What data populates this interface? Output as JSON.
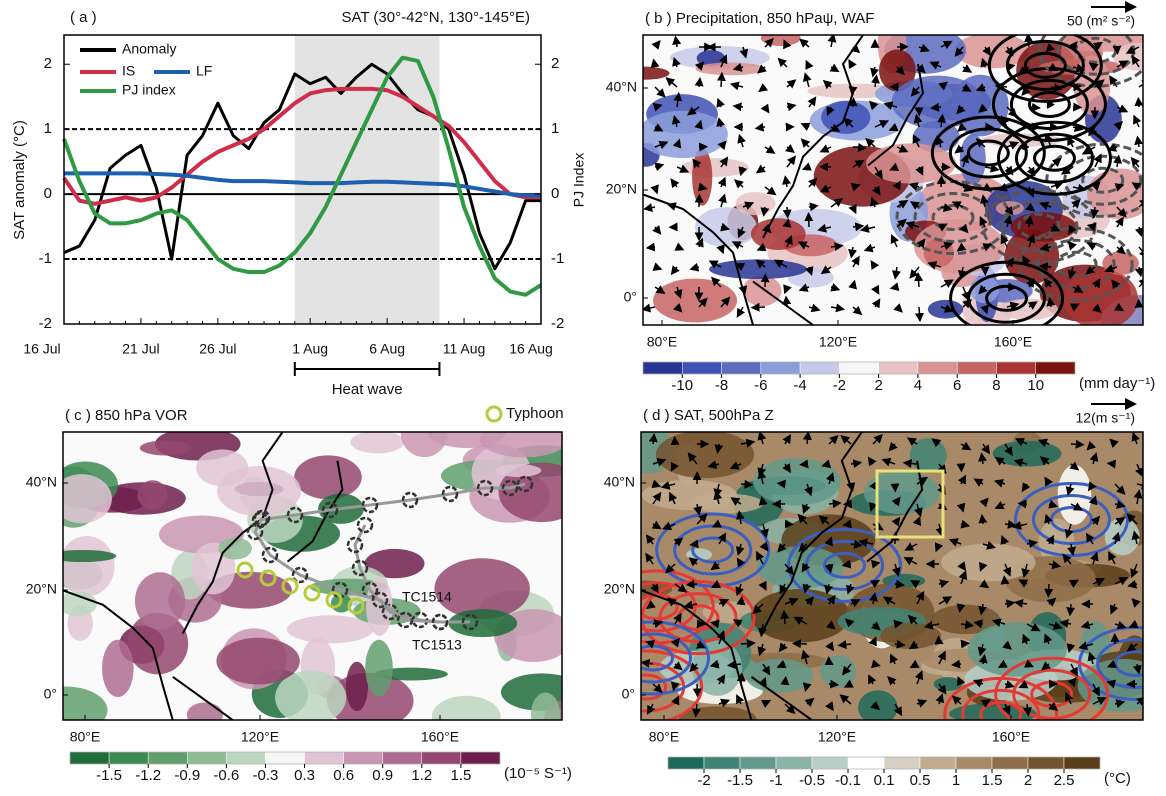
{
  "chart_data": {
    "type": "line",
    "panel_label": "( a )",
    "title": "SAT (30°-42°N, 130°-145°E)",
    "y_label": "SAT  anomaly (°C)",
    "y2_label": "PJ Index",
    "categories": [
      "16 Jul",
      null,
      null,
      null,
      null,
      "21 Jul",
      null,
      null,
      null,
      null,
      "26 Jul",
      null,
      null,
      null,
      null,
      null,
      "1 Aug",
      null,
      null,
      null,
      null,
      "6 Aug",
      null,
      null,
      null,
      null,
      "11 Aug",
      null,
      null,
      null,
      null,
      "16 Aug"
    ],
    "series": [
      {
        "name": "Anomaly",
        "color": "#000000",
        "values": [
          -0.9,
          -0.8,
          -0.4,
          0.4,
          0.6,
          0.75,
          0.1,
          -1.0,
          0.6,
          0.9,
          1.4,
          0.9,
          0.7,
          1.1,
          1.3,
          1.85,
          1.7,
          1.8,
          1.55,
          1.8,
          2.0,
          1.85,
          1.55,
          1.3,
          1.2,
          1.0,
          0.3,
          -0.6,
          -1.15,
          -0.75,
          -0.1,
          -0.1
        ]
      },
      {
        "name": "IS",
        "color": "#cf2e4a",
        "values": [
          0.25,
          -0.1,
          -0.15,
          -0.1,
          -0.05,
          -0.1,
          -0.05,
          0.1,
          0.3,
          0.5,
          0.65,
          0.75,
          0.85,
          1.0,
          1.2,
          1.4,
          1.55,
          1.6,
          1.62,
          1.62,
          1.62,
          1.6,
          1.5,
          1.35,
          1.2,
          1.05,
          0.8,
          0.5,
          0.2,
          0.0,
          -0.05,
          -0.05
        ]
      },
      {
        "name": "LF",
        "color": "#1d5fb0",
        "values": [
          0.32,
          0.32,
          0.32,
          0.32,
          0.32,
          0.32,
          0.31,
          0.3,
          0.28,
          0.25,
          0.22,
          0.2,
          0.2,
          0.2,
          0.19,
          0.18,
          0.17,
          0.17,
          0.17,
          0.18,
          0.19,
          0.19,
          0.18,
          0.17,
          0.16,
          0.15,
          0.12,
          0.08,
          0.04,
          0.0,
          -0.02,
          -0.03
        ]
      },
      {
        "name": "PJ index",
        "color": "#2e9a44",
        "axis": "y2",
        "values": [
          0.85,
          0.2,
          -0.3,
          -0.45,
          -0.45,
          -0.4,
          -0.3,
          -0.25,
          -0.4,
          -0.7,
          -1.0,
          -1.15,
          -1.2,
          -1.2,
          -1.1,
          -0.9,
          -0.6,
          -0.2,
          0.3,
          0.8,
          1.3,
          1.8,
          2.1,
          2.05,
          1.5,
          0.7,
          -0.2,
          -0.8,
          -1.3,
          -1.5,
          -1.55,
          -1.4
        ]
      }
    ],
    "ylim": [
      -2,
      2.45
    ],
    "yticks": [
      -2,
      -1,
      0,
      1,
      2
    ],
    "y2lim": [
      -2,
      2.45
    ],
    "y2ticks": [
      -2,
      -1,
      0,
      1,
      2
    ],
    "hlines": [
      -1,
      0,
      1
    ],
    "hline_styles": [
      "dashed",
      "solid",
      "dashed"
    ],
    "highlight": {
      "label": "Heat wave",
      "span": [
        15,
        24.4
      ],
      "color": "#e3e3e3"
    }
  },
  "maps": [
    {
      "title": "( b ) Precipitation, 850 hPaψ, WAF",
      "lat_labels": [
        "40°N",
        "20°N",
        "0°"
      ],
      "lon_labels": [
        "80°E",
        "120°E",
        "160°E"
      ],
      "vector_ref": "50 (m² s⁻²)",
      "colorbar": {
        "ticks": [
          -10,
          -8,
          -6,
          -4,
          -2,
          2,
          4,
          6,
          8,
          10
        ],
        "unit": "(mm day⁻¹)",
        "colors": [
          "#283593",
          "#3f51b5",
          "#5c6bc0",
          "#8c9eda",
          "#c5cae9",
          "#f6f6f6",
          "#e8c3c3",
          "#d99393",
          "#c86464",
          "#a83434",
          "#7a1010"
        ]
      }
    },
    {
      "title": "( c ) 850 hPa VOR",
      "lat_labels": [
        "40°N",
        "20°N",
        "0°"
      ],
      "lon_labels": [
        "80°E",
        "120°E",
        "160°E"
      ],
      "legend": "Typhoon",
      "track_labels": [
        "TC1514",
        "TC1513"
      ],
      "colorbar": {
        "ticks": [
          -1.5,
          -1.2,
          -0.9,
          -0.6,
          -0.3,
          0.3,
          0.6,
          0.9,
          1.2,
          1.5
        ],
        "unit": "(10⁻⁵ S⁻¹)",
        "colors": [
          "#1f6b3a",
          "#3d8a52",
          "#629f6f",
          "#8fbb95",
          "#bcd6bf",
          "#f6f6f6",
          "#e0c4d4",
          "#c996b1",
          "#ae6d90",
          "#94476f",
          "#6e1f4c"
        ]
      }
    },
    {
      "title": "( d ) SAT, 500hPa Z",
      "lat_labels": [
        "40°N",
        "20°N",
        "0°"
      ],
      "lon_labels": [
        "80°E",
        "120°E",
        "160°E"
      ],
      "vector_ref": "12(m s⁻¹)",
      "colorbar": {
        "ticks": [
          -2,
          -1.5,
          -1,
          -0.5,
          -0.1,
          0.1,
          0.5,
          1,
          1.5,
          2,
          2.5
        ],
        "unit": "(°C)",
        "colors": [
          "#1e6a5a",
          "#3f8474",
          "#63998b",
          "#8ab3a7",
          "#b8cfc9",
          "#ffffff",
          "#d8cfc3",
          "#c2ab8e",
          "#a98a68",
          "#8e6d48",
          "#73542f",
          "#5a3e1a"
        ]
      }
    }
  ]
}
